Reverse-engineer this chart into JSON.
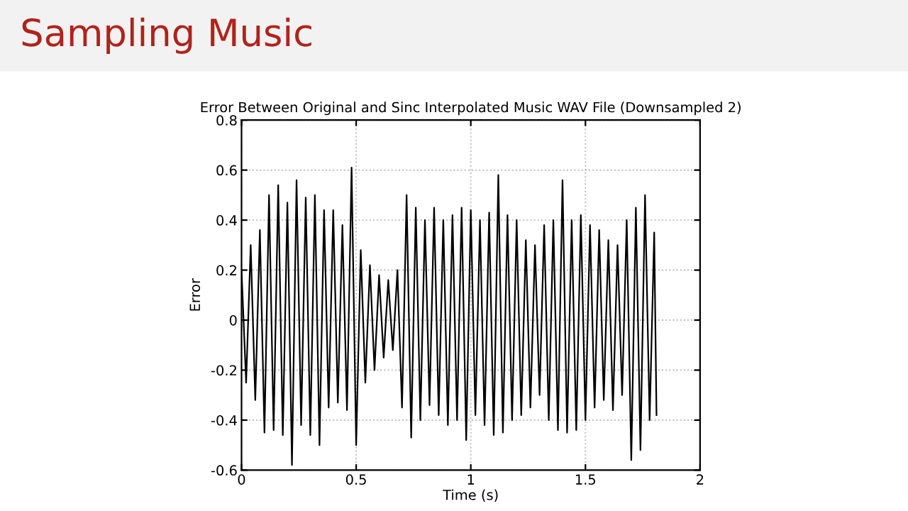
{
  "chart_data": {
    "type": "line",
    "title": "Sampling Music",
    "subtitle": "Error Between Original and Sinc Interpolated Music WAV File (Downsampled 2)",
    "xlabel": "Time (s)",
    "ylabel": "Error",
    "x": [
      0.0,
      0.02,
      0.04,
      0.06,
      0.08,
      0.1,
      0.12,
      0.14,
      0.16,
      0.18,
      0.2,
      0.22,
      0.24,
      0.26,
      0.28,
      0.3,
      0.32,
      0.34,
      0.36,
      0.38,
      0.4,
      0.42,
      0.44,
      0.46,
      0.48,
      0.5,
      0.52,
      0.54,
      0.56,
      0.58,
      0.6,
      0.62,
      0.64,
      0.66,
      0.68,
      0.7,
      0.72,
      0.74,
      0.76,
      0.78,
      0.8,
      0.82,
      0.84,
      0.86,
      0.88,
      0.9,
      0.92,
      0.94,
      0.96,
      0.98,
      1.0,
      1.02,
      1.04,
      1.06,
      1.08,
      1.1,
      1.12,
      1.14,
      1.16,
      1.18,
      1.2,
      1.22,
      1.24,
      1.26,
      1.28,
      1.3,
      1.32,
      1.34,
      1.36,
      1.38,
      1.4,
      1.42,
      1.44,
      1.46,
      1.48,
      1.5,
      1.52,
      1.54,
      1.56,
      1.58,
      1.6,
      1.62,
      1.64,
      1.66,
      1.68,
      1.7,
      1.72,
      1.74,
      1.76,
      1.78,
      1.8,
      1.81
    ],
    "series": [
      {
        "color": "#000000",
        "values": [
          0.2,
          -0.25,
          0.3,
          -0.32,
          0.36,
          -0.45,
          0.5,
          -0.44,
          0.54,
          -0.46,
          0.47,
          -0.58,
          0.56,
          -0.42,
          0.49,
          -0.46,
          0.5,
          -0.5,
          0.44,
          -0.35,
          0.44,
          -0.33,
          0.38,
          -0.36,
          0.61,
          -0.5,
          0.28,
          -0.25,
          0.22,
          -0.2,
          0.18,
          -0.15,
          0.16,
          -0.12,
          0.2,
          -0.35,
          0.5,
          -0.47,
          0.45,
          -0.4,
          0.4,
          -0.34,
          0.45,
          -0.38,
          0.4,
          -0.42,
          0.42,
          -0.4,
          0.45,
          -0.48,
          0.44,
          -0.38,
          0.4,
          -0.42,
          0.43,
          -0.46,
          0.58,
          -0.45,
          0.42,
          -0.4,
          0.4,
          -0.38,
          0.32,
          -0.35,
          0.3,
          -0.3,
          0.38,
          -0.4,
          0.4,
          -0.44,
          0.56,
          -0.45,
          0.4,
          -0.44,
          0.42,
          -0.4,
          0.38,
          -0.35,
          0.36,
          -0.32,
          0.32,
          -0.36,
          0.3,
          -0.3,
          0.4,
          -0.56,
          0.45,
          -0.52,
          0.5,
          -0.4,
          0.35,
          -0.38
        ]
      }
    ],
    "xlim": [
      0,
      2
    ],
    "ylim": [
      -0.6,
      0.8
    ],
    "xticks": [
      0,
      0.5,
      1,
      1.5,
      2
    ],
    "yticks": [
      -0.6,
      -0.4,
      -0.2,
      0,
      0.2,
      0.4,
      0.6,
      0.8
    ],
    "grid": true
  }
}
